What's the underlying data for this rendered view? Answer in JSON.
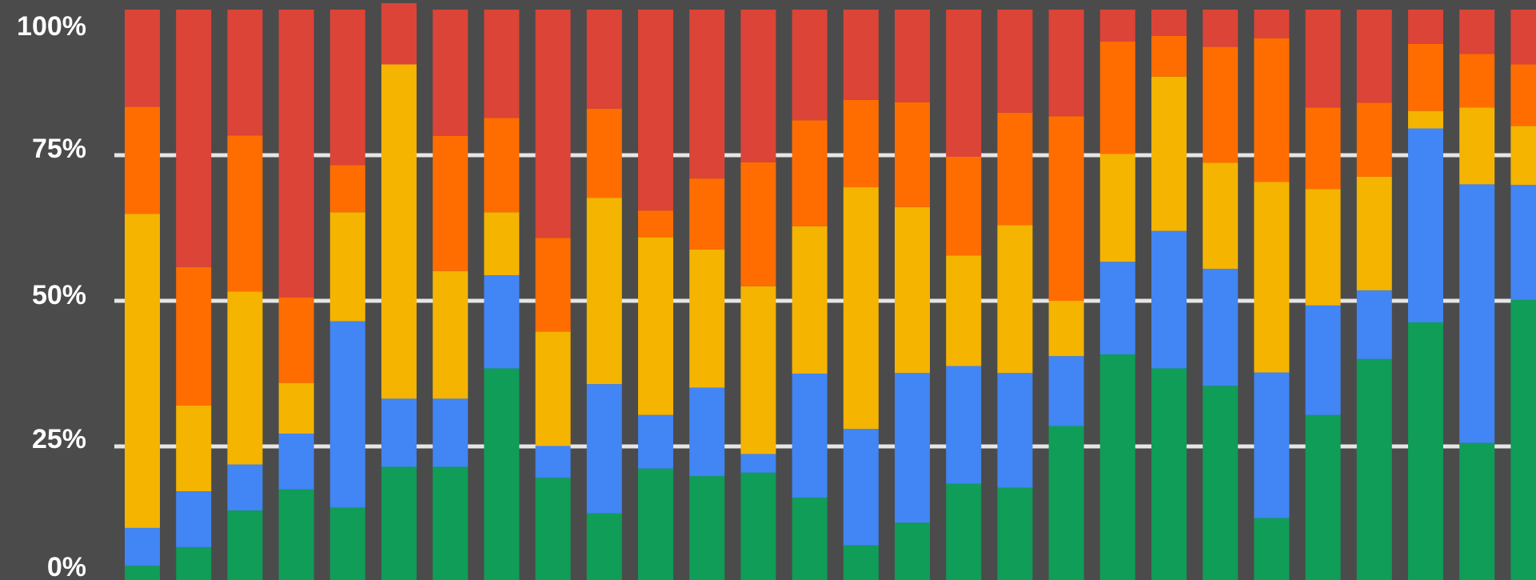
{
  "chart_data": {
    "type": "bar",
    "stacked": true,
    "normalized": true,
    "title": "",
    "xlabel": "",
    "ylabel": "",
    "ylim": [
      0,
      100
    ],
    "grid": true,
    "yticks": [
      "0%",
      "25%",
      "50%",
      "75%",
      "100%"
    ],
    "colors": {
      "background": "#4b4b4b",
      "grid": "#e6e6e6",
      "series": [
        "#0f9d58",
        "#4285f4",
        "#f4b400",
        "#ff6d00",
        "#db4437"
      ]
    },
    "series": [
      {
        "values": [
          4.5,
          7.7,
          14,
          17.6,
          14.5,
          21.5,
          21.5,
          38.4,
          19.6,
          13.5,
          21.2,
          19.9,
          20.5,
          16.2,
          8.0,
          11.9,
          18.6,
          17.9,
          28.5,
          40.8,
          38.4,
          35.4,
          12.7,
          30.4,
          40.0,
          46.3,
          25.6,
          50.2
        ]
      },
      {
        "values": [
          6.5,
          9.6,
          7.9,
          9.6,
          32.0,
          11.7,
          11.7,
          16.0,
          5.5,
          22.2,
          9.2,
          15.2,
          3.2,
          21.3,
          20.0,
          25.7,
          20.2,
          19.7,
          12.0,
          15.9,
          23.6,
          20.1,
          25.0,
          18.8,
          11.8,
          33.3,
          44.4,
          19.7
        ]
      },
      {
        "values": [
          53.9,
          14.7,
          29.7,
          8.7,
          18.7,
          57.4,
          21.9,
          10.8,
          19.6,
          32.0,
          30.5,
          23.7,
          28.8,
          25.3,
          41.5,
          28.5,
          19.0,
          25.4,
          9.5,
          18.5,
          26.5,
          18.2,
          32.7,
          20.0,
          19.5,
          3.0,
          13.2,
          10.1
        ]
      },
      {
        "values": [
          18.4,
          23.8,
          26.8,
          14.7,
          8.1,
          0,
          23.2,
          16.2,
          16.1,
          15.3,
          4.6,
          12.2,
          21.3,
          18.2,
          15.0,
          18.0,
          16.9,
          19.3,
          31.7,
          19.3,
          7.0,
          19.9,
          24.7,
          14.0,
          12.7,
          11.5,
          9.2,
          10.6
        ]
      },
      {
        "values": [
          16.7,
          44.2,
          21.6,
          49.4,
          26.7,
          10.5,
          21.7,
          18.6,
          39.2,
          17.0,
          34.5,
          29.0,
          26.2,
          19.0,
          15.5,
          15.9,
          25.3,
          17.7,
          18.3,
          5.5,
          4.5,
          6.4,
          4.9,
          16.8,
          16.0,
          5.9,
          7.6,
          9.4
        ]
      }
    ]
  }
}
